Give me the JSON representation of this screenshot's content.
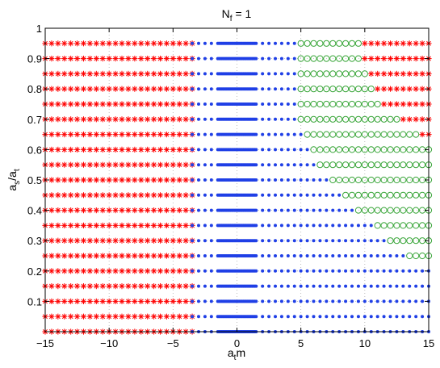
{
  "chart_data": {
    "type": "scatter",
    "title": "N_f = 1",
    "title_parts": {
      "main": "N",
      "sub": "f",
      "rest": " = 1"
    },
    "xlabel": "a_t m",
    "xlabel_parts": {
      "main": "a",
      "sub": "t",
      "rest": "m"
    },
    "ylabel": "a_s/a_t",
    "ylabel_parts": {
      "a1": "a",
      "s1": "s",
      "mid": "/a",
      "s2": "t"
    },
    "xlim": [
      -15,
      15
    ],
    "ylim": [
      0,
      1
    ],
    "xticks": [
      -15,
      -10,
      -5,
      0,
      5,
      10,
      15
    ],
    "xtick_labels": [
      "−15",
      "−10",
      "−5",
      "0",
      "5",
      "10",
      "15"
    ],
    "yticks": [
      0.1,
      0.2,
      0.3,
      0.4,
      0.5,
      0.6,
      0.7,
      0.8,
      0.9,
      1
    ],
    "ytick_labels": [
      "0.1",
      "0.2",
      "0.3",
      "0.4",
      "0.5",
      "0.6",
      "0.7",
      "0.8",
      "0.9",
      "1"
    ],
    "grid": "dotted",
    "colors": {
      "red": "#ff0000",
      "blue": "#1f3fe6",
      "green": "#3aa63a"
    },
    "rows_y": [
      0.0,
      0.05,
      0.1,
      0.15,
      0.2,
      0.25,
      0.3,
      0.35,
      0.4,
      0.45,
      0.5,
      0.55,
      0.6,
      0.65,
      0.7,
      0.75,
      0.8,
      0.85,
      0.9,
      0.95
    ],
    "dense_band": [
      -1.5,
      1.5
    ],
    "x_step": 0.5,
    "series": [
      {
        "marker": "asterisk",
        "color": "red",
        "ranges": [
          [
            [
              -15,
              -3.5
            ]
          ],
          [
            [
              -15,
              -3.5
            ]
          ],
          [
            [
              -15,
              -3.5
            ]
          ],
          [
            [
              -15,
              -3.5
            ]
          ],
          [
            [
              -15,
              -3.5
            ]
          ],
          [
            [
              -15,
              -3.5
            ]
          ],
          [
            [
              -15,
              -3.5
            ]
          ],
          [
            [
              -15,
              -3.5
            ]
          ],
          [
            [
              -15,
              -3.5
            ]
          ],
          [
            [
              -15,
              -3.5
            ]
          ],
          [
            [
              -15,
              -3.5
            ]
          ],
          [
            [
              -15,
              -3.5
            ]
          ],
          [
            [
              -15,
              -3.5
            ]
          ],
          [
            [
              -15,
              -3.5
            ],
            [
              14.5,
              15
            ]
          ],
          [
            [
              -15,
              -3.5
            ],
            [
              13,
              15
            ]
          ],
          [
            [
              -15,
              -3.5
            ],
            [
              11.5,
              15
            ]
          ],
          [
            [
              -15,
              -3.5
            ],
            [
              11,
              15
            ]
          ],
          [
            [
              -15,
              -3.5
            ],
            [
              10.5,
              15
            ]
          ],
          [
            [
              -15,
              -3.5
            ],
            [
              10,
              15
            ]
          ],
          [
            [
              -15,
              -3.5
            ],
            [
              10,
              15
            ]
          ]
        ]
      },
      {
        "marker": "dot",
        "color": "blue",
        "ranges": [
          [
            [
              -3.5,
              15
            ]
          ],
          [
            [
              -3.5,
              15
            ]
          ],
          [
            [
              -3.5,
              15
            ]
          ],
          [
            [
              -3.5,
              15
            ]
          ],
          [
            [
              -3.5,
              15
            ]
          ],
          [
            [
              -3.5,
              13
            ]
          ],
          [
            [
              -3.5,
              11.5
            ]
          ],
          [
            [
              -3.5,
              10.5
            ]
          ],
          [
            [
              -3.5,
              9
            ]
          ],
          [
            [
              -3.5,
              8
            ]
          ],
          [
            [
              -3.5,
              7
            ]
          ],
          [
            [
              -3.5,
              6
            ]
          ],
          [
            [
              -3.5,
              5.5
            ]
          ],
          [
            [
              -3.5,
              5
            ]
          ],
          [
            [
              -3.5,
              4.5
            ]
          ],
          [
            [
              -3.5,
              4.5
            ]
          ],
          [
            [
              -3.5,
              4.5
            ]
          ],
          [
            [
              -3.5,
              4.5
            ]
          ],
          [
            [
              -3.5,
              4.5
            ]
          ],
          [
            [
              -3.5,
              4.5
            ]
          ]
        ]
      },
      {
        "marker": "circle",
        "color": "green",
        "ranges": [
          [],
          [],
          [],
          [],
          [],
          [
            [
              13.5,
              15
            ]
          ],
          [
            [
              12,
              15
            ]
          ],
          [
            [
              11,
              15
            ]
          ],
          [
            [
              9.5,
              15
            ]
          ],
          [
            [
              8.5,
              15
            ]
          ],
          [
            [
              7.5,
              15
            ]
          ],
          [
            [
              6.5,
              15
            ]
          ],
          [
            [
              6,
              15
            ]
          ],
          [
            [
              5.5,
              14
            ]
          ],
          [
            [
              5,
              12.5
            ]
          ],
          [
            [
              5,
              11
            ]
          ],
          [
            [
              5,
              10.5
            ]
          ],
          [
            [
              5,
              10
            ]
          ],
          [
            [
              5,
              9.5
            ]
          ],
          [
            [
              5,
              9.5
            ]
          ]
        ]
      }
    ]
  }
}
